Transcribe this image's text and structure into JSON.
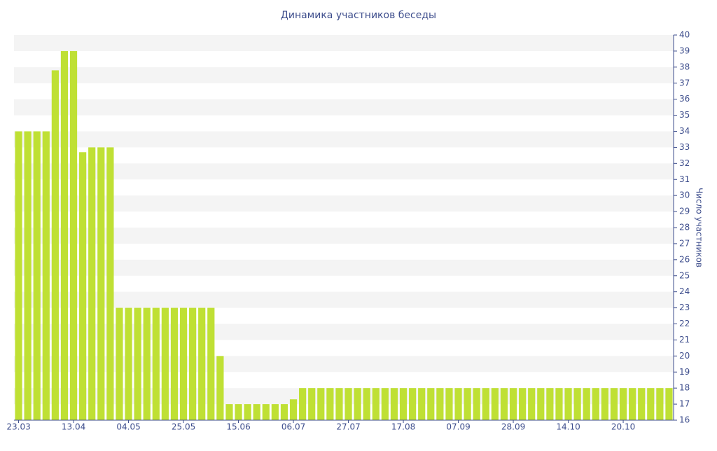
{
  "chart_data": {
    "type": "bar",
    "title": "Динамика участников беседы",
    "y_axis_label": "Число участников",
    "categories": [
      "23.03",
      null,
      null,
      null,
      null,
      null,
      "13.04",
      null,
      null,
      null,
      null,
      null,
      "04.05",
      null,
      null,
      null,
      null,
      null,
      "25.05",
      null,
      null,
      null,
      null,
      null,
      "15.06",
      null,
      null,
      null,
      null,
      null,
      "06.07",
      null,
      null,
      null,
      null,
      null,
      "27.07",
      null,
      null,
      null,
      null,
      null,
      "17.08",
      null,
      null,
      null,
      null,
      null,
      "07.09",
      null,
      null,
      null,
      null,
      null,
      "28.09",
      null,
      null,
      null,
      null,
      null,
      "14.10",
      null,
      null,
      null,
      null,
      null,
      "20.10",
      null,
      null,
      null,
      null,
      null
    ],
    "values": [
      34,
      34,
      34,
      34,
      37.8,
      39,
      39,
      32.7,
      33,
      33,
      33,
      23,
      23,
      23,
      23,
      23,
      23,
      23,
      23,
      23,
      23,
      23,
      20,
      17,
      17,
      17,
      17,
      17,
      17,
      17,
      17.3,
      18,
      18,
      18,
      18,
      18,
      18,
      18,
      18,
      18,
      18,
      18,
      18,
      18,
      18,
      18,
      18,
      18,
      18,
      18,
      18,
      18,
      18,
      18,
      18,
      18,
      18,
      18,
      18,
      18,
      18,
      18,
      18,
      18,
      18,
      18,
      18,
      18,
      18,
      18,
      18,
      18
    ],
    "color": "#bfe034",
    "ylim": [
      16,
      40
    ],
    "yticks": [
      16,
      17,
      18,
      19,
      20,
      21,
      22,
      23,
      24,
      25,
      26,
      27,
      28,
      29,
      30,
      31,
      32,
      33,
      34,
      35,
      36,
      37,
      38,
      39,
      40
    ],
    "y_axis_side": "right",
    "grid": true
  }
}
